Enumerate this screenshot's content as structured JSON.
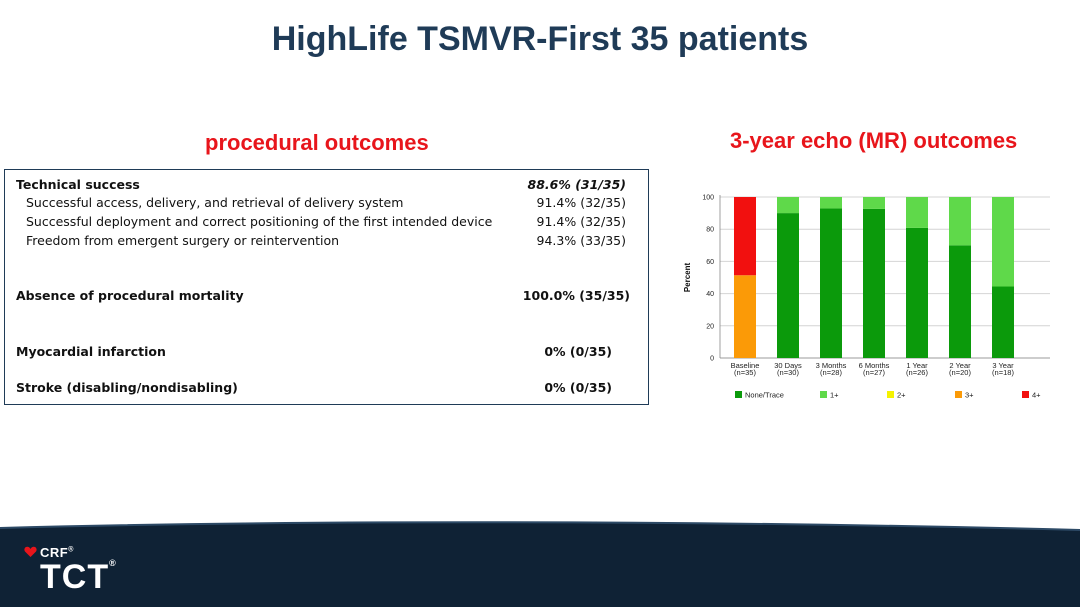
{
  "title": "HighLife TSMVR-First 35 patients",
  "left_subtitle": "procedural outcomes",
  "right_subtitle": "3-year echo (MR) outcomes",
  "table": {
    "rows": [
      {
        "label": "Technical success",
        "value": "88.6% (31/35)"
      },
      {
        "label": "Successful access, delivery, and retrieval of delivery system",
        "value": "91.4% (32/35)"
      },
      {
        "label": "Successful deployment and correct positioning of the first intended device",
        "value": "91.4% (32/35)"
      },
      {
        "label": "Freedom from emergent surgery or reintervention",
        "value": "94.3% (33/35)"
      },
      {
        "label": "Absence of procedural mortality",
        "value": "100.0% (35/35)"
      },
      {
        "label": "Myocardial infarction",
        "value": "0% (0/35)"
      },
      {
        "label": "Stroke (disabling/nondisabling)",
        "value": "0% (0/35)"
      }
    ]
  },
  "chart_data": {
    "type": "bar",
    "stacked": true,
    "ylabel": "Percent",
    "ylim": [
      0,
      100
    ],
    "yticks": [
      0,
      20,
      40,
      60,
      80,
      100
    ],
    "grid": true,
    "categories": [
      "Baseline",
      "30 Days",
      "3 Months",
      "6 Months",
      "1 Year",
      "2 Year",
      "3 Year"
    ],
    "category_sublabels": [
      "(n=35)",
      "(n=30)",
      "(n=28)",
      "(n=27)",
      "(n=26)",
      "(n=20)",
      "(n=18)"
    ],
    "series": [
      {
        "name": "None/Trace",
        "color": "#0b9a0b",
        "values": [
          0,
          90,
          92.9,
          92.6,
          80.8,
          70,
          44.4
        ]
      },
      {
        "name": "1+",
        "color": "#5fd94a",
        "values": [
          0,
          10,
          7.1,
          7.4,
          19.2,
          30,
          55.6
        ]
      },
      {
        "name": "2+",
        "color": "#f5f200",
        "values": [
          0,
          0,
          0,
          0,
          0,
          0,
          0
        ]
      },
      {
        "name": "3+",
        "color": "#fb9a07",
        "values": [
          51.4,
          0,
          0,
          0,
          0,
          0,
          0
        ]
      },
      {
        "name": "4+",
        "color": "#f2100f",
        "values": [
          48.6,
          0,
          0,
          0,
          0,
          0,
          0
        ]
      }
    ],
    "legend_position": "bottom"
  },
  "footer": {
    "logo_top": "CRF",
    "logo_top_mark": "®",
    "logo_main": "TCT",
    "logo_main_mark": "®",
    "band_color": "#0f2235"
  }
}
